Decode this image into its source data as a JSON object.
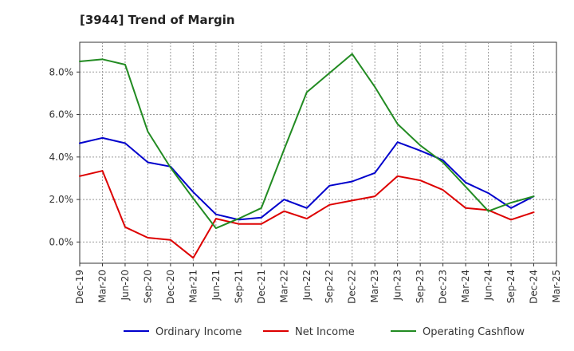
{
  "chart_data": {
    "type": "line",
    "title": "[3944]  Trend of Margin",
    "xlabel": "",
    "ylabel": "",
    "categories": [
      "Dec-19",
      "Mar-20",
      "Jun-20",
      "Sep-20",
      "Dec-20",
      "Mar-21",
      "Jun-21",
      "Sep-21",
      "Dec-21",
      "Mar-22",
      "Jun-22",
      "Sep-22",
      "Dec-22",
      "Mar-23",
      "Jun-23",
      "Sep-23",
      "Dec-23",
      "Mar-24",
      "Jun-24",
      "Sep-24",
      "Dec-24",
      "Mar-25"
    ],
    "ylim": [
      -1.0,
      9.4
    ],
    "yticks": [
      0.0,
      2.0,
      4.0,
      6.0,
      8.0
    ],
    "ytick_labels": [
      "0.0%",
      "2.0%",
      "4.0%",
      "6.0%",
      "8.0%"
    ],
    "grid": true,
    "legend_position": "bottom",
    "series": [
      {
        "name": "Ordinary Income",
        "color": "#0000cc",
        "values": [
          4.65,
          4.9,
          4.65,
          3.75,
          3.55,
          2.35,
          1.3,
          1.05,
          1.15,
          2.0,
          1.6,
          2.65,
          2.85,
          3.25,
          4.7,
          4.3,
          3.85,
          2.8,
          2.3,
          1.6,
          2.15,
          null
        ]
      },
      {
        "name": "Net Income",
        "color": "#dd0000",
        "values": [
          3.1,
          3.35,
          0.7,
          0.2,
          0.1,
          -0.75,
          1.1,
          0.85,
          0.85,
          1.45,
          1.1,
          1.75,
          1.95,
          2.15,
          3.1,
          2.9,
          2.45,
          1.6,
          1.5,
          1.05,
          1.4,
          null
        ]
      },
      {
        "name": "Operating Cashflow",
        "color": "#228b22",
        "values": [
          8.5,
          8.6,
          8.35,
          5.2,
          3.5,
          2.05,
          0.65,
          1.1,
          1.6,
          4.35,
          7.05,
          7.95,
          8.85,
          7.3,
          5.55,
          4.55,
          3.75,
          2.6,
          1.45,
          1.85,
          2.15,
          null
        ]
      }
    ]
  }
}
